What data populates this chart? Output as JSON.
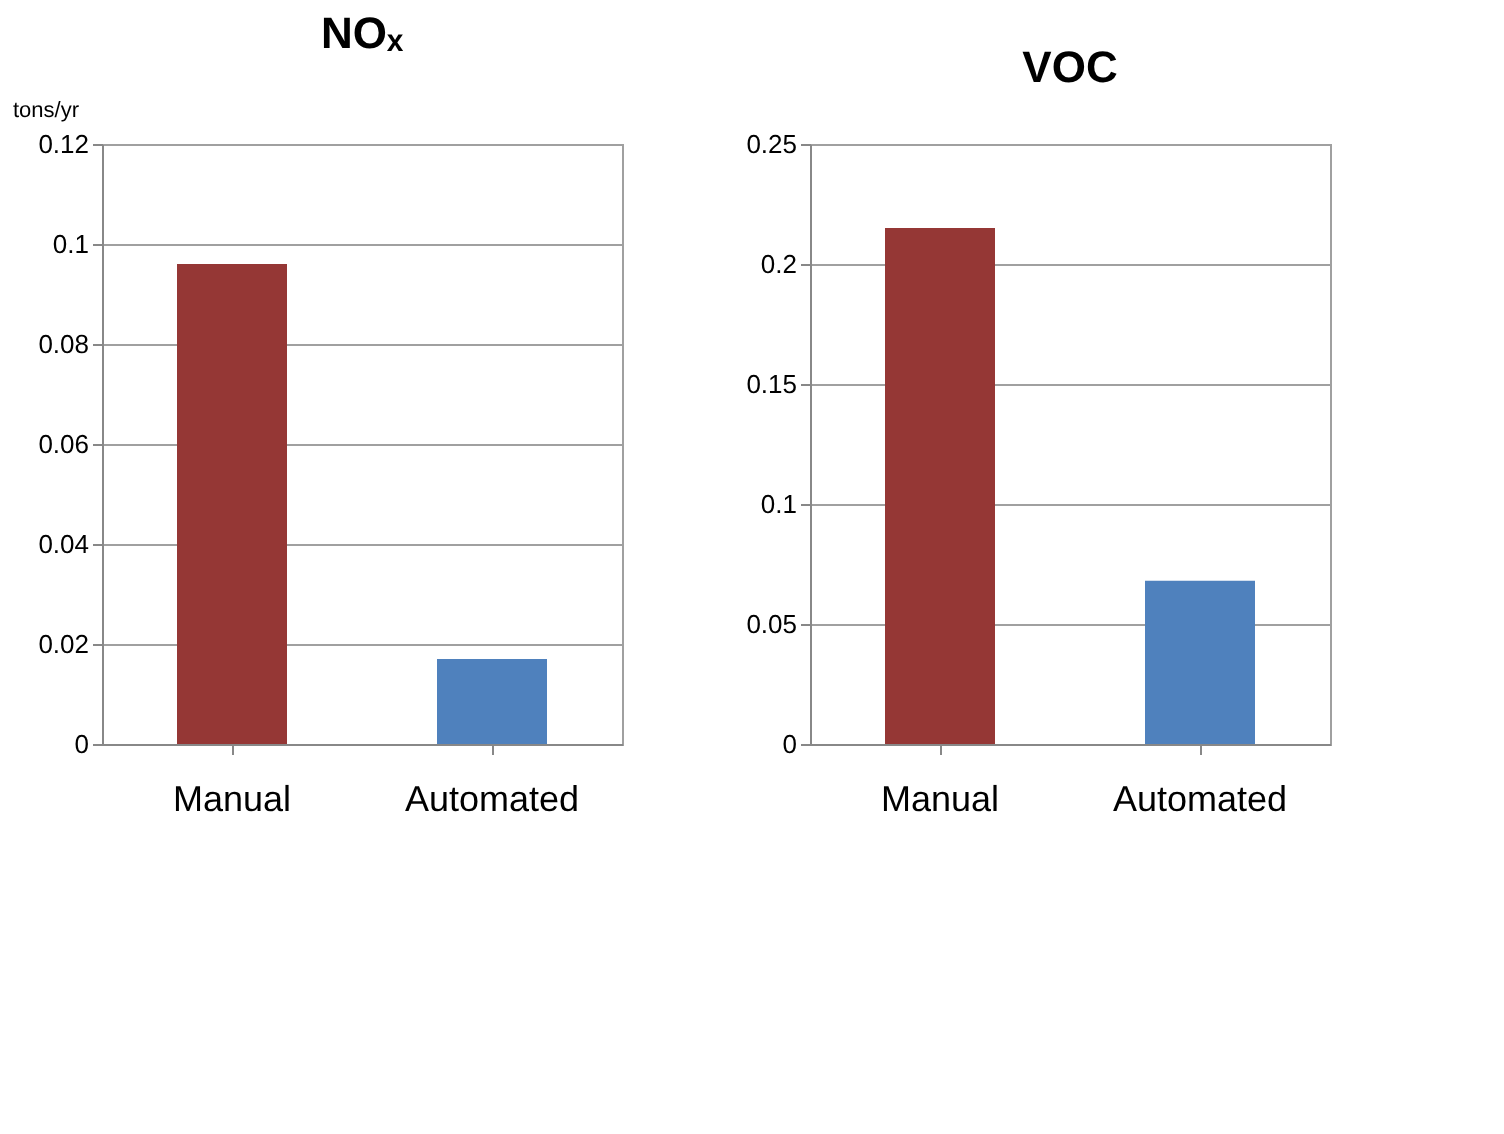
{
  "chart_data": [
    {
      "type": "bar",
      "title": "NOₓ",
      "ylabel": "tons/yr",
      "categories": [
        "Manual",
        "Automated"
      ],
      "values": [
        0.096,
        0.017
      ],
      "colors": [
        "#953735",
        "#4f81bd"
      ],
      "ylim": [
        0,
        0.12
      ],
      "yticks": [
        0,
        0.02,
        0.04,
        0.06,
        0.08,
        0.1,
        0.12
      ],
      "grid": "y"
    },
    {
      "type": "bar",
      "title": "VOC",
      "categories": [
        "Manual",
        "Automated"
      ],
      "values": [
        0.215,
        0.068
      ],
      "colors": [
        "#953735",
        "#4f81bd"
      ],
      "ylim": [
        0,
        0.25
      ],
      "yticks": [
        0,
        0.05,
        0.1,
        0.15,
        0.2,
        0.25
      ],
      "grid": "y"
    }
  ]
}
